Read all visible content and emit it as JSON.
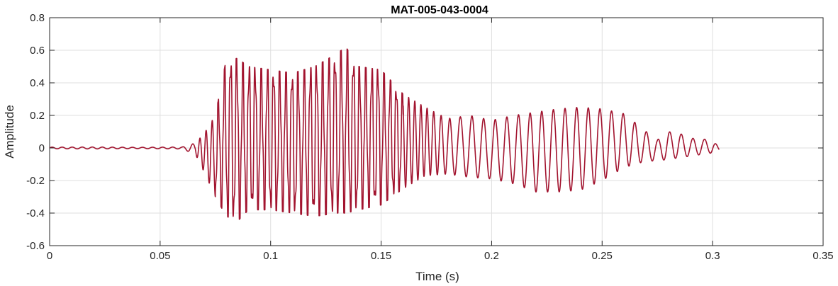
{
  "chart_data": {
    "type": "line",
    "title": "MAT-005-043-0004",
    "xlabel": "Time (s)",
    "ylabel": "Amplitude",
    "xlim": [
      0,
      0.35
    ],
    "ylim": [
      -0.6,
      0.8
    ],
    "xticks": [
      0,
      0.05,
      0.1,
      0.15,
      0.2,
      0.25,
      0.3,
      0.35
    ],
    "xtick_labels": [
      "0",
      "0.05",
      "0.1",
      "0.15",
      "0.2",
      "0.25",
      "0.3",
      "0.35"
    ],
    "yticks": [
      -0.6,
      -0.4,
      -0.2,
      0,
      0.2,
      0.4,
      0.6,
      0.8
    ],
    "ytick_labels": [
      "-0.6",
      "-0.4",
      "-0.2",
      "0",
      "0.2",
      "0.4",
      "0.6",
      "0.8"
    ],
    "grid": true,
    "line_color": "#a2142f",
    "grid_color": "#dfdfdf",
    "axis_color": "#262626",
    "series": [
      {
        "signal_duration_s": 0.303,
        "envelope": {
          "x": [
            0,
            0.02,
            0.04,
            0.06,
            0.066,
            0.07,
            0.075,
            0.08,
            0.085,
            0.09,
            0.1,
            0.11,
            0.12,
            0.13,
            0.134,
            0.14,
            0.15,
            0.16,
            0.17,
            0.18,
            0.19,
            0.2,
            0.21,
            0.22,
            0.23,
            0.24,
            0.25,
            0.26,
            0.27,
            0.275,
            0.28,
            0.285,
            0.29,
            0.3,
            0.303
          ],
          "upper": [
            0.005,
            0.006,
            0.004,
            0.006,
            0.03,
            0.09,
            0.2,
            0.55,
            0.55,
            0.5,
            0.48,
            0.46,
            0.5,
            0.58,
            0.62,
            0.5,
            0.48,
            0.33,
            0.25,
            0.18,
            0.2,
            0.17,
            0.2,
            0.22,
            0.24,
            0.25,
            0.24,
            0.21,
            0.1,
            0.05,
            0.1,
            0.09,
            0.06,
            0.05,
            0.0
          ],
          "lower": [
            -0.005,
            -0.006,
            -0.004,
            -0.006,
            -0.04,
            -0.15,
            -0.3,
            -0.42,
            -0.45,
            -0.38,
            -0.38,
            -0.4,
            -0.42,
            -0.4,
            -0.4,
            -0.38,
            -0.35,
            -0.25,
            -0.17,
            -0.16,
            -0.18,
            -0.19,
            -0.22,
            -0.27,
            -0.27,
            -0.26,
            -0.2,
            -0.12,
            -0.08,
            -0.08,
            -0.07,
            -0.06,
            -0.05,
            -0.03,
            -0.02
          ]
        }
      }
    ]
  }
}
